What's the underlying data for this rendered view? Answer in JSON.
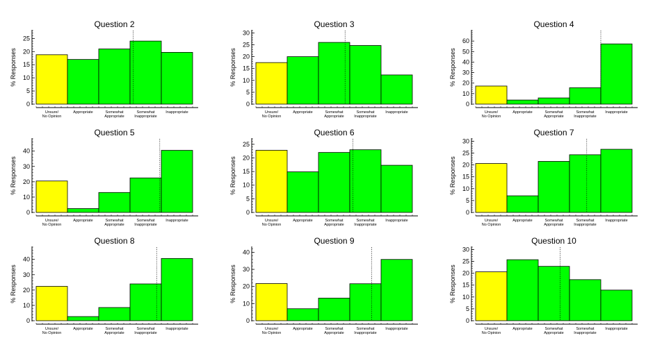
{
  "colors": {
    "neutral": "#ffff00",
    "answer": "#00ff00",
    "edge": "#000000",
    "median_line": "#000000"
  },
  "shared": {
    "categories": [
      {
        "line1": "Unsure/",
        "line2": "No Opinion"
      },
      {
        "line1": "Appropriate",
        "line2": ""
      },
      {
        "line1": "Somewhat",
        "line2": "Appropriate"
      },
      {
        "line1": "Somewhat",
        "line2": "Inappropriate"
      },
      {
        "line1": "Inappropriate",
        "line2": ""
      }
    ],
    "ylabel": "% Responses"
  },
  "chart_data": [
    {
      "type": "bar",
      "title": "Question 2",
      "values": [
        18.8,
        17,
        21,
        24,
        19.7
      ],
      "ylim": [
        0,
        28
      ],
      "yticks": [
        0,
        5,
        10,
        15,
        20,
        25
      ],
      "median_at": 3.1
    },
    {
      "type": "bar",
      "title": "Question 3",
      "values": [
        17.5,
        20,
        26,
        24.7,
        12.3
      ],
      "ylim": [
        0,
        31
      ],
      "yticks": [
        0,
        5,
        10,
        15,
        20,
        25,
        30
      ],
      "median_at": 2.85
    },
    {
      "type": "bar",
      "title": "Question 4",
      "values": [
        17.2,
        3.9,
        5.9,
        15.6,
        57.3
      ],
      "ylim": [
        0,
        70
      ],
      "yticks": [
        0,
        10,
        20,
        30,
        40,
        50,
        60
      ],
      "median_at": 4.0
    },
    {
      "type": "bar",
      "title": "Question 5",
      "values": [
        20.5,
        2.5,
        13,
        22.5,
        40.5
      ],
      "ylim": [
        0,
        48
      ],
      "yticks": [
        0,
        10,
        20,
        30,
        40
      ],
      "median_at": 3.95
    },
    {
      "type": "bar",
      "title": "Question 6",
      "values": [
        22.8,
        14.9,
        22,
        23,
        17.3
      ],
      "ylim": [
        0,
        27
      ],
      "yticks": [
        0,
        5,
        10,
        15,
        20,
        25
      ],
      "median_at": 3.1
    },
    {
      "type": "bar",
      "title": "Question 7",
      "values": [
        20.6,
        7,
        21.5,
        24.3,
        26.6
      ],
      "ylim": [
        0,
        31
      ],
      "yticks": [
        0,
        5,
        10,
        15,
        20,
        25,
        30
      ],
      "median_at": 3.55
    },
    {
      "type": "bar",
      "title": "Question 8",
      "values": [
        22.4,
        2.7,
        8.6,
        24,
        40.6
      ],
      "ylim": [
        0,
        48
      ],
      "yticks": [
        0,
        10,
        20,
        30,
        40
      ],
      "median_at": 3.85
    },
    {
      "type": "bar",
      "title": "Question 9",
      "values": [
        21.7,
        7,
        13.2,
        21.6,
        35.8
      ],
      "ylim": [
        0,
        43
      ],
      "yticks": [
        0,
        10,
        20,
        30,
        40
      ],
      "median_at": 3.7
    },
    {
      "type": "bar",
      "title": "Question 10",
      "values": [
        20.6,
        25.7,
        22.9,
        17.3,
        12.9
      ],
      "ylim": [
        0,
        31
      ],
      "yticks": [
        0,
        5,
        10,
        15,
        20,
        25,
        30
      ],
      "median_at": 2.7
    }
  ]
}
